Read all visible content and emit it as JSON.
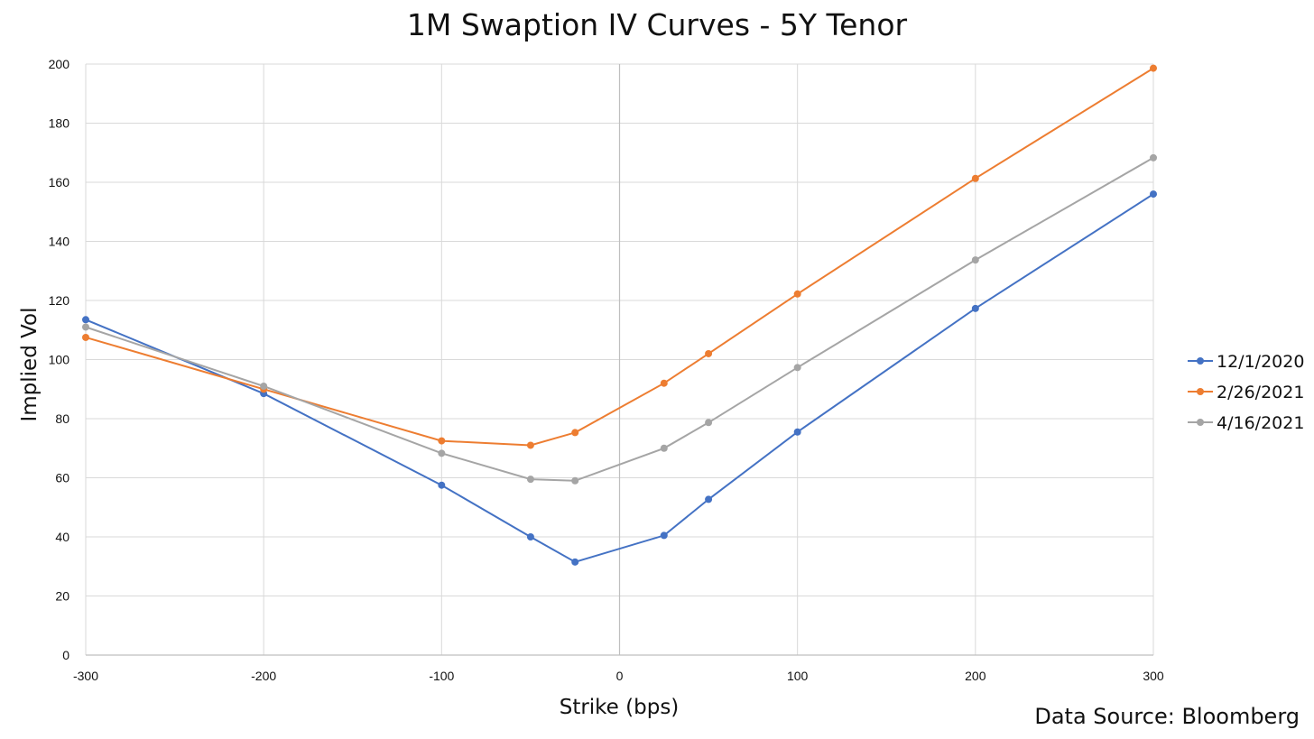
{
  "chart_data": {
    "type": "line",
    "title": "1M Swaption IV Curves - 5Y Tenor",
    "xlabel": "Strike (bps)",
    "ylabel": "Implied Vol",
    "x_tick_labels": [
      "-300",
      "-200",
      "-100",
      "0",
      "100",
      "200",
      "300"
    ],
    "y_tick_labels": [
      "0",
      "20",
      "40",
      "60",
      "80",
      "100",
      "120",
      "140",
      "160",
      "180",
      "200"
    ],
    "categories": [
      "-300",
      "-200",
      "-100",
      "-50",
      "-25",
      "25",
      "50",
      "100",
      "200",
      "300"
    ],
    "x": [
      -300,
      -200,
      -100,
      -50,
      -25,
      25,
      50,
      100,
      200,
      300
    ],
    "xlim": [
      -300,
      300
    ],
    "ylim": [
      0,
      200
    ],
    "grid": true,
    "legend": "right",
    "series": [
      {
        "name": "12/1/2020",
        "color": "#4472C4",
        "values": [
          113.5,
          88.5,
          57.5,
          40,
          31.5,
          40.5,
          52.7,
          75.5,
          117.3,
          156
        ]
      },
      {
        "name": "2/26/2021",
        "color": "#ED7D31",
        "values": [
          107.5,
          90,
          72.5,
          71,
          75.3,
          92,
          102,
          122.2,
          161.3,
          198.6
        ]
      },
      {
        "name": "4/16/2021",
        "color": "#A5A5A5",
        "values": [
          111,
          91,
          68.3,
          59.5,
          59,
          70,
          78.7,
          97.3,
          133.7,
          168.3
        ]
      }
    ],
    "source": "Data Source: Bloomberg"
  }
}
